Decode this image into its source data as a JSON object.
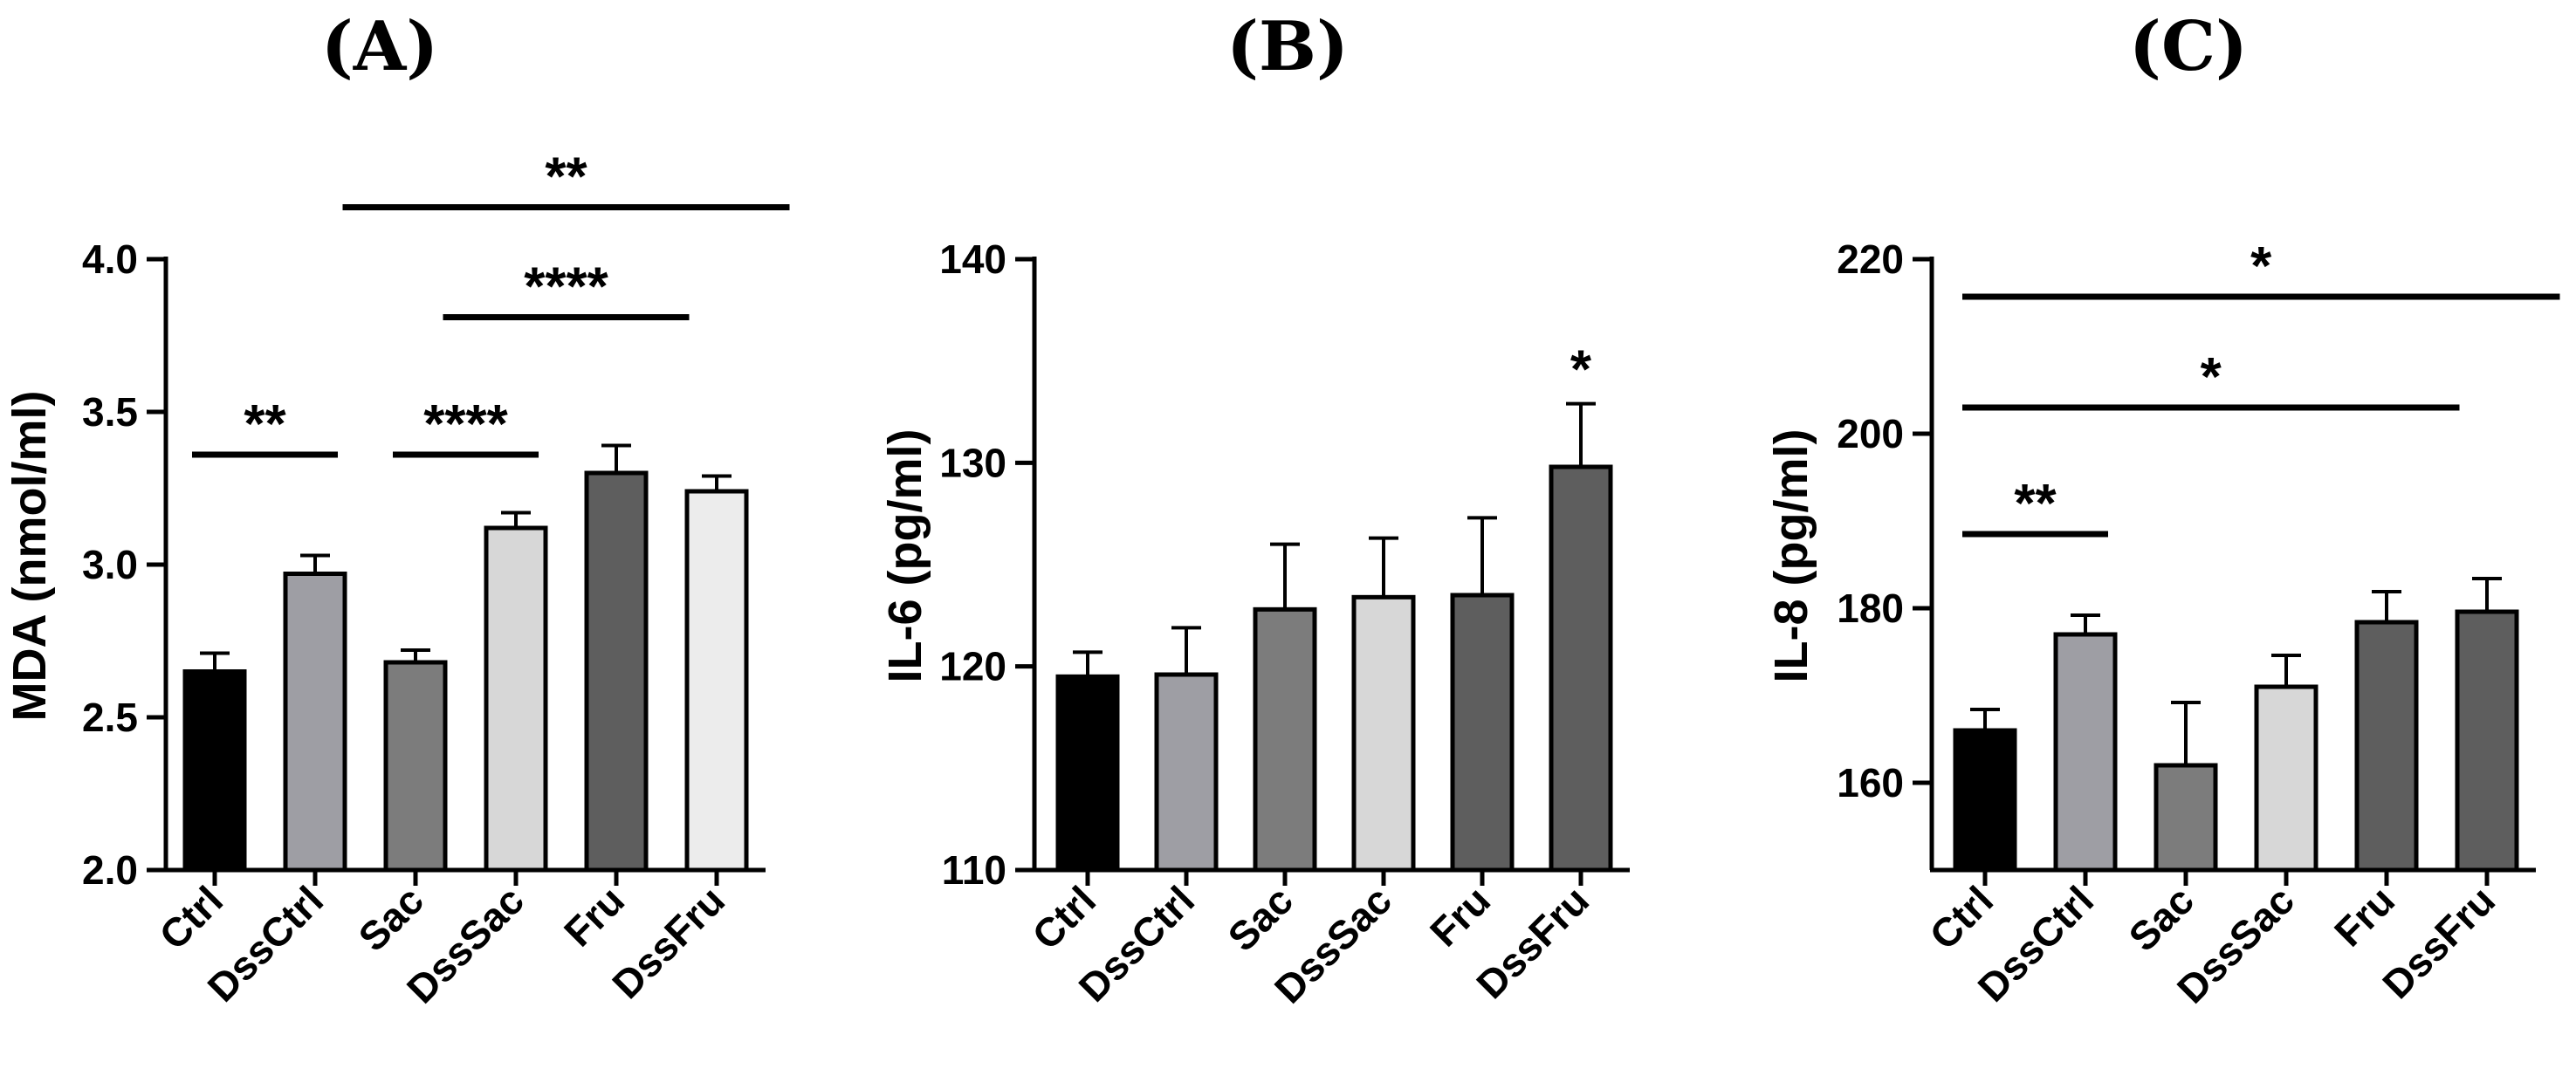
{
  "chart_data": [
    {
      "type": "bar",
      "panel": "(A)",
      "title": "",
      "xlabel": "",
      "ylabel": "MDA (nmol/ml)",
      "ylim": [
        2.0,
        4.0
      ],
      "ticks": [
        2.0,
        2.5,
        3.0,
        3.5,
        4.0
      ],
      "tick_labels": [
        "2.0",
        "2.5",
        "3.0",
        "3.5",
        "4.0"
      ],
      "categories": [
        "Ctrl",
        "DssCtrl",
        "Sac",
        "DssSac",
        "Fru",
        "DssFru"
      ],
      "values": [
        2.65,
        2.97,
        2.68,
        3.12,
        3.3,
        3.24
      ],
      "errors": [
        0.06,
        0.06,
        0.04,
        0.05,
        0.09,
        0.05
      ],
      "colors": [
        "#000000",
        "#9e9ea4",
        "#7c7c7c",
        "#d7d7d7",
        "#5e5e5e",
        "#ececec"
      ],
      "significance": [
        {
          "from": 0,
          "to": 1,
          "level": 3.36,
          "label": "**"
        },
        {
          "from": 2,
          "to": 3,
          "level": 3.36,
          "label": "****"
        },
        {
          "from": 2.5,
          "to": 4.5,
          "level": 3.81,
          "label": "****"
        },
        {
          "from": 1.5,
          "to": 5.5,
          "level": 4.17,
          "label": "**"
        }
      ],
      "bar_annotations": []
    },
    {
      "type": "bar",
      "panel": "(B)",
      "title": "",
      "xlabel": "",
      "ylabel": "IL-6 (pg/ml)",
      "ylim": [
        110,
        140
      ],
      "ticks": [
        110,
        120,
        130,
        140
      ],
      "tick_labels": [
        "110",
        "120",
        "130",
        "140"
      ],
      "categories": [
        "Ctrl",
        "DssCtrl",
        "Sac",
        "DssSac",
        "Fru",
        "DssFru"
      ],
      "values": [
        119.5,
        119.6,
        122.8,
        123.4,
        123.5,
        129.8
      ],
      "errors": [
        1.2,
        2.3,
        3.2,
        2.9,
        3.8,
        3.1
      ],
      "colors": [
        "#000000",
        "#9e9ea4",
        "#7c7c7c",
        "#d7d7d7",
        "#5e5e5e",
        "#5e5e5e"
      ],
      "significance": [],
      "bar_annotations": [
        {
          "index": 5,
          "label": "*"
        }
      ]
    },
    {
      "type": "bar",
      "panel": "(C)",
      "title": "",
      "xlabel": "",
      "ylabel": "IL-8 (pg/ml)",
      "ylim": [
        150,
        220
      ],
      "ticks": [
        160,
        180,
        200,
        220
      ],
      "tick_labels": [
        "160",
        "180",
        "200",
        "220"
      ],
      "categories": [
        "Ctrl",
        "DssCtrl",
        "Sac",
        "DssSac",
        "Fru",
        "DssFru"
      ],
      "values": [
        166.0,
        177.0,
        162.0,
        171.0,
        178.4,
        179.6
      ],
      "errors": [
        2.4,
        2.2,
        7.2,
        3.6,
        3.5,
        3.8
      ],
      "colors": [
        "#000000",
        "#9e9ea4",
        "#7c7c7c",
        "#d7d7d7",
        "#5e5e5e",
        "#5e5e5e"
      ],
      "significance": [
        {
          "from": 0,
          "to": 1,
          "level": 188.5,
          "label": "**"
        },
        {
          "from": 0,
          "to": 4.5,
          "level": 203.0,
          "label": "*"
        },
        {
          "from": 0,
          "to": 5.5,
          "level": 215.7,
          "label": "*"
        }
      ],
      "bar_annotations": []
    }
  ]
}
